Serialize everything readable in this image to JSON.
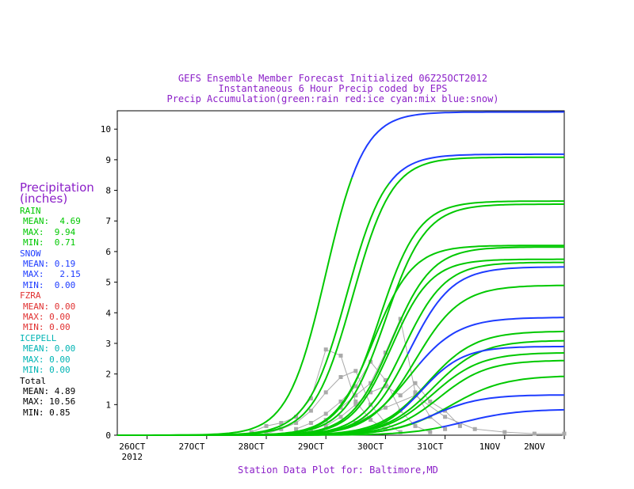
{
  "titles": {
    "line1": "GEFS Ensemble Member Forecast Initialized 06Z25OCT2012",
    "line2": "Instantaneous 6 Hour Precip coded by EPS",
    "line3": "Precip Accumulation(green:rain red:ice cyan:mix blue:snow)"
  },
  "footer": "Station Data Plot for: Baltimore,MD",
  "legend": {
    "heading1": "Precipitation",
    "heading2": "(inches)",
    "groups": [
      {
        "name": "RAIN",
        "color": "#00c800",
        "mean": "MEAN:  4.69",
        "max": "MAX:  9.94",
        "min": "MIN:  0.71"
      },
      {
        "name": "SNOW",
        "color": "#1e3cff",
        "mean": "MEAN: 0.19",
        "max": "MAX:   2.15",
        "min": "MIN:  0.00"
      },
      {
        "name": "FZRA",
        "color": "#e03030",
        "mean": "MEAN: 0.00",
        "max": "MAX: 0.00",
        "min": "MIN: 0.00"
      },
      {
        "name": "ICEPELL",
        "color": "#00b4b4",
        "mean": "MEAN: 0.00",
        "max": "MAX: 0.00",
        "min": "MIN: 0.00"
      },
      {
        "name": "Total",
        "color": "#000000",
        "mean": "MEAN: 4.89",
        "max": "MAX: 10.56",
        "min": "MIN: 0.85"
      }
    ]
  },
  "colors": {
    "rain": "#00c800",
    "snow": "#1e3cff",
    "instant": "#aaaaaa",
    "title": "#8b1fc8"
  },
  "chart_data": {
    "type": "line",
    "xlim": [
      0,
      7.5
    ],
    "ylim": [
      0,
      10.6
    ],
    "yticks": [
      0,
      1,
      2,
      3,
      4,
      5,
      6,
      7,
      8,
      9,
      10
    ],
    "xticks": [
      {
        "v": 0.5,
        "label": "26OCT",
        "sub": "2012"
      },
      {
        "v": 1.5,
        "label": "27OCT",
        "sub": ""
      },
      {
        "v": 2.5,
        "label": "28OCT",
        "sub": ""
      },
      {
        "v": 3.5,
        "label": "29OCT",
        "sub": ""
      },
      {
        "v": 4.5,
        "label": "30OCT",
        "sub": ""
      },
      {
        "v": 5.5,
        "label": "31OCT",
        "sub": ""
      },
      {
        "v": 6.5,
        "label": "1NOV",
        "sub": ""
      },
      {
        "v": 7.5,
        "label": "2NOV",
        "sub": ""
      }
    ],
    "accumulation_series": [
      {
        "final": 10.56,
        "mid": 3.5,
        "width": 0.32,
        "snow_after": 4.0
      },
      {
        "final": 9.18,
        "mid": 3.85,
        "width": 0.33,
        "snow_after": 4.6
      },
      {
        "final": 9.08,
        "mid": 3.95,
        "width": 0.33
      },
      {
        "final": 7.65,
        "mid": 4.4,
        "width": 0.33
      },
      {
        "final": 7.55,
        "mid": 4.5,
        "width": 0.34
      },
      {
        "final": 6.2,
        "mid": 4.3,
        "width": 0.33
      },
      {
        "final": 6.15,
        "mid": 4.6,
        "width": 0.34
      },
      {
        "final": 5.75,
        "mid": 4.6,
        "width": 0.33
      },
      {
        "final": 5.65,
        "mid": 4.8,
        "width": 0.35
      },
      {
        "final": 5.5,
        "mid": 4.9,
        "width": 0.36,
        "snow_after": 4.9
      },
      {
        "final": 4.9,
        "mid": 5.0,
        "width": 0.38
      },
      {
        "final": 3.85,
        "mid": 4.9,
        "width": 0.4,
        "snow_after": 5.1
      },
      {
        "final": 3.4,
        "mid": 5.2,
        "width": 0.4
      },
      {
        "final": 3.1,
        "mid": 5.3,
        "width": 0.4
      },
      {
        "final": 2.9,
        "mid": 5.1,
        "width": 0.35,
        "snow_after": 4.8
      },
      {
        "final": 2.7,
        "mid": 5.3,
        "width": 0.4
      },
      {
        "final": 2.45,
        "mid": 5.4,
        "width": 0.4
      },
      {
        "final": 1.95,
        "mid": 5.6,
        "width": 0.45
      },
      {
        "final": 1.32,
        "mid": 5.3,
        "width": 0.4,
        "snow_after": 5.0
      },
      {
        "final": 0.85,
        "mid": 5.8,
        "width": 0.45,
        "snow_after": 5.5
      }
    ],
    "instant_points": [
      [
        2.25,
        0.1
      ],
      [
        2.5,
        0.3
      ],
      [
        2.75,
        0.4
      ],
      [
        3.0,
        0.6
      ],
      [
        3.25,
        1.2
      ],
      [
        3.5,
        2.8
      ],
      [
        3.75,
        2.6
      ],
      [
        4.0,
        1.1
      ],
      [
        4.25,
        0.5
      ],
      [
        4.5,
        0.2
      ],
      [
        2.5,
        0.05
      ],
      [
        2.75,
        0.2
      ],
      [
        3.0,
        0.4
      ],
      [
        3.25,
        0.8
      ],
      [
        3.5,
        1.4
      ],
      [
        3.75,
        1.9
      ],
      [
        4.0,
        2.1
      ],
      [
        4.25,
        1.0
      ],
      [
        4.5,
        0.4
      ],
      [
        4.75,
        0.1
      ],
      [
        3.0,
        0.2
      ],
      [
        3.25,
        0.4
      ],
      [
        3.5,
        0.7
      ],
      [
        3.75,
        1.1
      ],
      [
        4.0,
        1.6
      ],
      [
        4.25,
        2.4
      ],
      [
        4.5,
        1.8
      ],
      [
        4.75,
        0.8
      ],
      [
        5.0,
        0.3
      ],
      [
        5.25,
        0.1
      ],
      [
        3.25,
        0.2
      ],
      [
        3.5,
        0.5
      ],
      [
        3.75,
        0.9
      ],
      [
        4.0,
        1.3
      ],
      [
        4.25,
        1.7
      ],
      [
        4.5,
        2.7
      ],
      [
        4.75,
        3.8
      ],
      [
        5.0,
        1.4
      ],
      [
        5.25,
        0.6
      ],
      [
        5.5,
        0.2
      ],
      [
        3.5,
        0.3
      ],
      [
        3.75,
        0.6
      ],
      [
        4.0,
        1.0
      ],
      [
        4.25,
        1.4
      ],
      [
        4.5,
        1.6
      ],
      [
        4.75,
        1.3
      ],
      [
        5.0,
        1.7
      ],
      [
        5.25,
        1.1
      ],
      [
        5.5,
        0.8
      ],
      [
        5.75,
        0.3
      ],
      [
        4.0,
        0.4
      ],
      [
        4.5,
        0.9
      ],
      [
        5.0,
        1.3
      ],
      [
        5.5,
        0.6
      ],
      [
        6.0,
        0.2
      ],
      [
        6.5,
        0.1
      ],
      [
        7.0,
        0.05
      ],
      [
        7.5,
        0.05
      ]
    ]
  }
}
